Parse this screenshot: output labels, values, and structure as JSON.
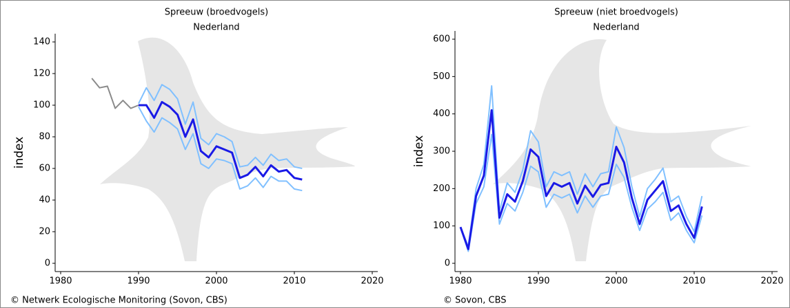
{
  "chart_data": [
    {
      "type": "line",
      "title": "Spreeuw (broedvogels)",
      "subtitle": "Nederland",
      "ylabel": "index",
      "source": "© Netwerk Ecologische Monitoring (Sovon, CBS)",
      "xlim": [
        1980,
        2020
      ],
      "xticks": [
        1980,
        1990,
        2000,
        2010,
        2020
      ],
      "ylim": [
        0,
        140
      ],
      "yticks": [
        0,
        20,
        40,
        60,
        80,
        100,
        120,
        140
      ],
      "series": [
        {
          "color": "#8a8a8a",
          "x": [
            1984,
            1985,
            1986,
            1987,
            1988,
            1989,
            1990
          ],
          "values": [
            117,
            111,
            112,
            98,
            103,
            98,
            100
          ]
        },
        {
          "color": "#80c0ff",
          "x": [
            1990,
            1991,
            1992,
            1993,
            1994,
            1995,
            1996,
            1997,
            1998,
            1999,
            2000,
            2001,
            2002,
            2003,
            2004,
            2005,
            2006,
            2007,
            2008,
            2009,
            2010,
            2011
          ],
          "values": [
            101,
            111,
            103,
            113,
            110,
            104,
            88,
            102,
            79,
            75,
            82,
            80,
            77,
            61,
            62,
            67,
            62,
            69,
            65,
            66,
            61,
            60
          ]
        },
        {
          "color": "#80c0ff",
          "x": [
            1990,
            1991,
            1992,
            1993,
            1994,
            1995,
            1996,
            1997,
            1998,
            1999,
            2000,
            2001,
            2002,
            2003,
            2004,
            2005,
            2006,
            2007,
            2008,
            2009,
            2010,
            2011
          ],
          "values": [
            99,
            90,
            83,
            92,
            89,
            85,
            72,
            82,
            63,
            60,
            66,
            65,
            63,
            47,
            49,
            54,
            48,
            55,
            52,
            52,
            47,
            46
          ]
        },
        {
          "color": "#1a1ae6",
          "x": [
            1990,
            1991,
            1992,
            1993,
            1994,
            1995,
            1996,
            1997,
            1998,
            1999,
            2000,
            2001,
            2002,
            2003,
            2004,
            2005,
            2006,
            2007,
            2008,
            2009,
            2010,
            2011
          ],
          "values": [
            100,
            100,
            92,
            102,
            99,
            94,
            80,
            91,
            71,
            67,
            74,
            72,
            70,
            54,
            56,
            61,
            55,
            62,
            58,
            59,
            54,
            53
          ]
        }
      ]
    },
    {
      "type": "line",
      "title": "Spreeuw (niet broedvogels)",
      "subtitle": "Nederland",
      "ylabel": "index",
      "source": "© Sovon, CBS",
      "xlim": [
        1980,
        2020
      ],
      "xticks": [
        1980,
        1990,
        2000,
        2010,
        2020
      ],
      "ylim": [
        0,
        600
      ],
      "yticks": [
        0,
        100,
        200,
        300,
        400,
        500,
        600
      ],
      "series": [
        {
          "color": "#80c0ff",
          "x": [
            1980,
            1981,
            1982,
            1983,
            1984,
            1985,
            1986,
            1987,
            1988,
            1989,
            1990,
            1991,
            1992,
            1993,
            1994,
            1995,
            1996,
            1997,
            1998,
            1999,
            2000,
            2001,
            2002,
            2003,
            2004,
            2005,
            2006,
            2007,
            2008,
            2009,
            2010,
            2011
          ],
          "values": [
            97,
            45,
            200,
            265,
            475,
            140,
            215,
            190,
            250,
            355,
            325,
            205,
            245,
            235,
            245,
            185,
            240,
            205,
            240,
            245,
            365,
            310,
            205,
            125,
            200,
            225,
            255,
            165,
            180,
            125,
            85,
            180
          ]
        },
        {
          "color": "#80c0ff",
          "x": [
            1980,
            1981,
            1982,
            1983,
            1984,
            1985,
            1986,
            1987,
            1988,
            1989,
            1990,
            1991,
            1992,
            1993,
            1994,
            1995,
            1996,
            1997,
            1998,
            1999,
            2000,
            2001,
            2002,
            2003,
            2004,
            2005,
            2006,
            2007,
            2008,
            2009,
            2010,
            2011
          ],
          "values": [
            97,
            32,
            160,
            205,
            345,
            105,
            160,
            140,
            190,
            260,
            245,
            150,
            185,
            175,
            185,
            135,
            180,
            150,
            180,
            185,
            265,
            230,
            150,
            88,
            145,
            165,
            190,
            115,
            135,
            88,
            55,
            128
          ]
        },
        {
          "color": "#1a1ae6",
          "x": [
            1980,
            1981,
            1982,
            1983,
            1984,
            1985,
            1986,
            1987,
            1988,
            1989,
            1990,
            1991,
            1992,
            1993,
            1994,
            1995,
            1996,
            1997,
            1998,
            1999,
            2000,
            2001,
            2002,
            2003,
            2004,
            2005,
            2006,
            2007,
            2008,
            2009,
            2010,
            2011
          ],
          "values": [
            97,
            38,
            180,
            235,
            410,
            122,
            185,
            165,
            220,
            305,
            285,
            180,
            215,
            205,
            215,
            160,
            208,
            178,
            210,
            215,
            312,
            270,
            175,
            105,
            170,
            195,
            220,
            140,
            155,
            105,
            68,
            152
          ]
        }
      ]
    }
  ]
}
